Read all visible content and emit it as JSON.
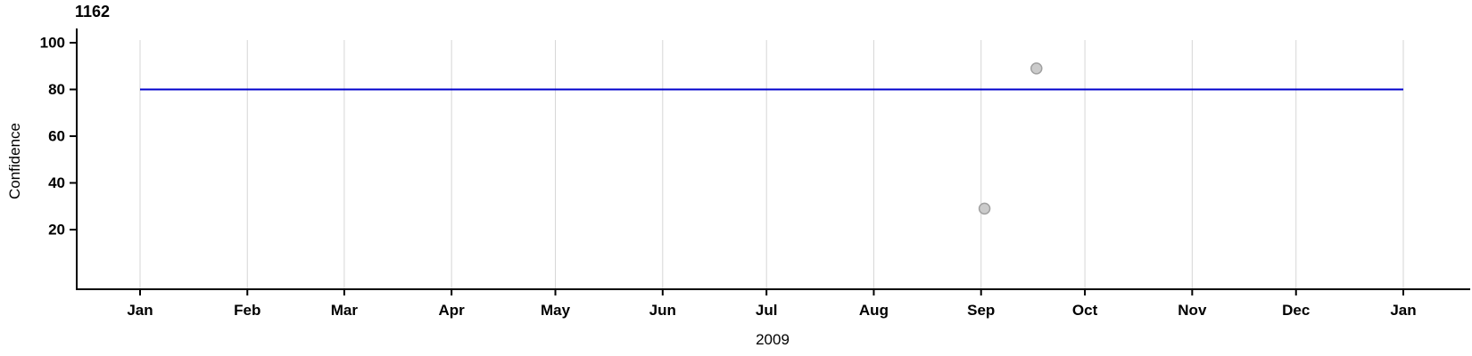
{
  "chart_data": {
    "type": "scatter",
    "title": "1162",
    "ylabel": "Confidence",
    "xlabel": "2009",
    "grid": "vertical month gridlines only",
    "legend": "none",
    "x_axis": {
      "unit": "date (year 2009)",
      "month_labels": [
        "Jan",
        "Feb",
        "Mar",
        "Apr",
        "May",
        "Jun",
        "Jul",
        "Aug",
        "Sep",
        "Oct",
        "Nov",
        "Dec",
        "Jan"
      ],
      "month_start_days": [
        0,
        31,
        59,
        90,
        120,
        151,
        181,
        212,
        243,
        273,
        304,
        334,
        365
      ],
      "range_days": [
        0,
        365
      ]
    },
    "y_axis": {
      "ticks": [
        20,
        40,
        60,
        80,
        100
      ],
      "tick_labels": [
        "20",
        "40",
        "60",
        "80",
        "100"
      ],
      "ylim": [
        -5.5,
        101
      ]
    },
    "reference_line": {
      "value": 80,
      "start_day": 0,
      "end_day": 365,
      "color": "#0000cc"
    },
    "points": [
      {
        "date": "2009-09-02",
        "day_of_year": 244,
        "value": 29
      },
      {
        "date": "2009-09-17",
        "day_of_year": 259,
        "value": 89
      }
    ],
    "colors": {
      "gridline": "#d6d6d6",
      "axis": "#000000",
      "refline": "#0000cc",
      "point_fill": "#cbcbcb",
      "point_stroke": "#a0a0a0",
      "text": "#000000"
    }
  }
}
